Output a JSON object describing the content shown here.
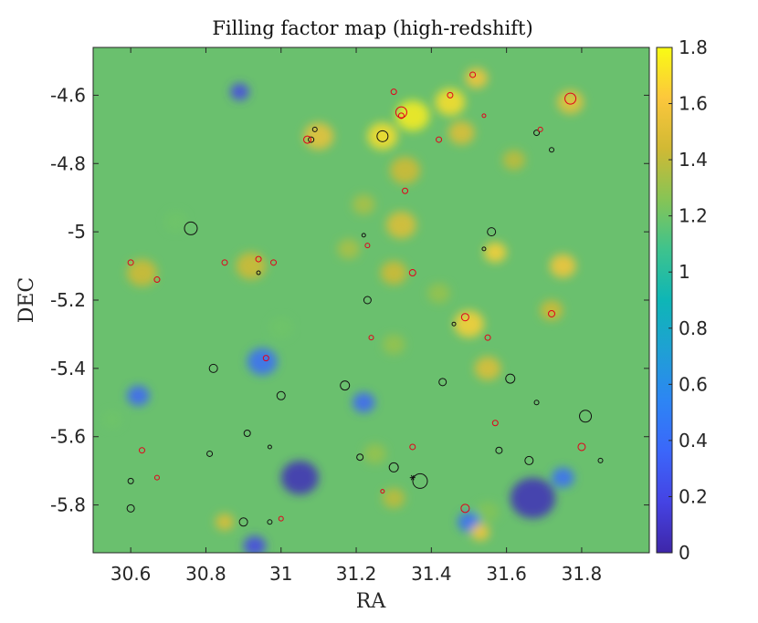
{
  "chart_data": {
    "type": "heatmap",
    "title": "Filling factor map (high-redshift)",
    "xlabel": "RA",
    "ylabel": "DEC",
    "xlim": [
      30.5,
      31.98
    ],
    "ylim": [
      -5.94,
      -4.46
    ],
    "x_reversed": false,
    "y_reversed": true,
    "colormap": "parula",
    "colorbar": {
      "range": [
        0,
        1.8
      ],
      "ticks": [
        "0",
        "0.2",
        "0.4",
        "0.6",
        "0.8",
        "1",
        "1.2",
        "1.4",
        "1.6",
        "1.8"
      ]
    },
    "x_ticks": [
      {
        "value": 30.6,
        "label": "30.6"
      },
      {
        "value": 30.8,
        "label": "30.8"
      },
      {
        "value": 31.0,
        "label": "31"
      },
      {
        "value": 31.2,
        "label": "31.2"
      },
      {
        "value": 31.4,
        "label": "31.4"
      },
      {
        "value": 31.6,
        "label": "31.6"
      },
      {
        "value": 31.8,
        "label": "31.8"
      }
    ],
    "y_ticks": [
      {
        "value": -4.6,
        "label": "-4.6"
      },
      {
        "value": -4.8,
        "label": "-4.8"
      },
      {
        "value": -5.0,
        "label": "-5"
      },
      {
        "value": -5.2,
        "label": "-5.2"
      },
      {
        "value": -5.4,
        "label": "-5.4"
      },
      {
        "value": -5.6,
        "label": "-5.6"
      },
      {
        "value": -5.8,
        "label": "-5.8"
      }
    ],
    "field_features": [
      {
        "ra": 31.05,
        "dec": -5.72,
        "value": 0.05,
        "size": 0.05
      },
      {
        "ra": 31.67,
        "dec": -5.78,
        "value": 0.05,
        "size": 0.06
      },
      {
        "ra": 30.89,
        "dec": -4.59,
        "value": 0.2,
        "size": 0.025
      },
      {
        "ra": 30.93,
        "dec": -5.92,
        "value": 0.2,
        "size": 0.03
      },
      {
        "ra": 30.62,
        "dec": -5.48,
        "value": 0.35,
        "size": 0.03
      },
      {
        "ra": 30.95,
        "dec": -5.38,
        "value": 0.4,
        "size": 0.04
      },
      {
        "ra": 31.22,
        "dec": -5.5,
        "value": 0.35,
        "size": 0.03
      },
      {
        "ra": 31.75,
        "dec": -5.72,
        "value": 0.4,
        "size": 0.03
      },
      {
        "ra": 31.5,
        "dec": -5.85,
        "value": 0.4,
        "size": 0.03
      },
      {
        "ra": 30.55,
        "dec": -5.55,
        "value": 1.2,
        "size": 0.025
      },
      {
        "ra": 30.63,
        "dec": -5.12,
        "value": 1.45,
        "size": 0.04
      },
      {
        "ra": 30.72,
        "dec": -4.97,
        "value": 1.2,
        "size": 0.03
      },
      {
        "ra": 30.92,
        "dec": -5.1,
        "value": 1.45,
        "size": 0.04
      },
      {
        "ra": 31.0,
        "dec": -5.28,
        "value": 1.2,
        "size": 0.03
      },
      {
        "ra": 31.1,
        "dec": -4.72,
        "value": 1.55,
        "size": 0.04
      },
      {
        "ra": 31.27,
        "dec": -4.72,
        "value": 1.7,
        "size": 0.04
      },
      {
        "ra": 31.35,
        "dec": -4.66,
        "value": 1.75,
        "size": 0.045
      },
      {
        "ra": 31.45,
        "dec": -4.62,
        "value": 1.7,
        "size": 0.04
      },
      {
        "ra": 31.48,
        "dec": -4.71,
        "value": 1.5,
        "size": 0.035
      },
      {
        "ra": 31.52,
        "dec": -4.55,
        "value": 1.6,
        "size": 0.03
      },
      {
        "ra": 31.33,
        "dec": -4.82,
        "value": 1.45,
        "size": 0.04
      },
      {
        "ra": 31.22,
        "dec": -4.92,
        "value": 1.35,
        "size": 0.03
      },
      {
        "ra": 31.32,
        "dec": -4.98,
        "value": 1.5,
        "size": 0.04
      },
      {
        "ra": 31.18,
        "dec": -5.05,
        "value": 1.35,
        "size": 0.03
      },
      {
        "ra": 31.3,
        "dec": -5.12,
        "value": 1.45,
        "size": 0.035
      },
      {
        "ra": 31.42,
        "dec": -5.18,
        "value": 1.3,
        "size": 0.03
      },
      {
        "ra": 31.5,
        "dec": -5.27,
        "value": 1.65,
        "size": 0.04
      },
      {
        "ra": 31.57,
        "dec": -5.06,
        "value": 1.65,
        "size": 0.03
      },
      {
        "ra": 31.75,
        "dec": -5.1,
        "value": 1.6,
        "size": 0.035
      },
      {
        "ra": 31.72,
        "dec": -5.23,
        "value": 1.45,
        "size": 0.03
      },
      {
        "ra": 31.77,
        "dec": -4.62,
        "value": 1.55,
        "size": 0.035
      },
      {
        "ra": 31.62,
        "dec": -4.79,
        "value": 1.4,
        "size": 0.03
      },
      {
        "ra": 31.55,
        "dec": -5.4,
        "value": 1.5,
        "size": 0.035
      },
      {
        "ra": 31.3,
        "dec": -5.33,
        "value": 1.3,
        "size": 0.03
      },
      {
        "ra": 30.85,
        "dec": -5.85,
        "value": 1.5,
        "size": 0.025
      },
      {
        "ra": 31.3,
        "dec": -5.78,
        "value": 1.4,
        "size": 0.03
      },
      {
        "ra": 31.55,
        "dec": -5.82,
        "value": 1.25,
        "size": 0.03
      },
      {
        "ra": 31.25,
        "dec": -5.65,
        "value": 1.3,
        "size": 0.03
      },
      {
        "ra": 31.53,
        "dec": -5.88,
        "value": 1.6,
        "size": 0.025
      }
    ],
    "sources": [
      {
        "ra": 30.76,
        "dec": -4.99,
        "r": 7,
        "color": "black"
      },
      {
        "ra": 31.08,
        "dec": -4.73,
        "r": 3,
        "color": "black"
      },
      {
        "ra": 31.09,
        "dec": -4.7,
        "r": 2.5,
        "color": "black"
      },
      {
        "ra": 31.27,
        "dec": -4.72,
        "r": 6,
        "color": "black"
      },
      {
        "ra": 31.22,
        "dec": -5.01,
        "r": 2,
        "color": "black"
      },
      {
        "ra": 31.23,
        "dec": -5.2,
        "r": 4,
        "color": "black"
      },
      {
        "ra": 31.56,
        "dec": -5.0,
        "r": 4.5,
        "color": "black"
      },
      {
        "ra": 31.54,
        "dec": -5.05,
        "r": 2,
        "color": "black"
      },
      {
        "ra": 31.68,
        "dec": -4.71,
        "r": 3,
        "color": "black"
      },
      {
        "ra": 31.72,
        "dec": -4.76,
        "r": 2.5,
        "color": "black"
      },
      {
        "ra": 30.94,
        "dec": -5.12,
        "r": 2,
        "color": "black"
      },
      {
        "ra": 31.46,
        "dec": -5.27,
        "r": 2,
        "color": "black"
      },
      {
        "ra": 30.82,
        "dec": -5.4,
        "r": 4.5,
        "color": "black"
      },
      {
        "ra": 31.0,
        "dec": -5.48,
        "r": 4.5,
        "color": "black"
      },
      {
        "ra": 31.17,
        "dec": -5.45,
        "r": 5,
        "color": "black"
      },
      {
        "ra": 31.43,
        "dec": -5.44,
        "r": 4,
        "color": "black"
      },
      {
        "ra": 31.61,
        "dec": -5.43,
        "r": 5,
        "color": "black"
      },
      {
        "ra": 31.68,
        "dec": -5.5,
        "r": 2.5,
        "color": "black"
      },
      {
        "ra": 31.81,
        "dec": -5.54,
        "r": 6.5,
        "color": "black"
      },
      {
        "ra": 30.91,
        "dec": -5.59,
        "r": 3.5,
        "color": "black"
      },
      {
        "ra": 30.97,
        "dec": -5.63,
        "r": 2,
        "color": "black"
      },
      {
        "ra": 30.81,
        "dec": -5.65,
        "r": 3,
        "color": "black"
      },
      {
        "ra": 31.21,
        "dec": -5.66,
        "r": 3.5,
        "color": "black"
      },
      {
        "ra": 31.3,
        "dec": -5.69,
        "r": 5,
        "color": "black"
      },
      {
        "ra": 31.37,
        "dec": -5.73,
        "r": 8,
        "color": "black"
      },
      {
        "ra": 31.58,
        "dec": -5.64,
        "r": 3.5,
        "color": "black"
      },
      {
        "ra": 31.66,
        "dec": -5.67,
        "r": 4.5,
        "color": "black"
      },
      {
        "ra": 31.85,
        "dec": -5.67,
        "r": 2.5,
        "color": "black"
      },
      {
        "ra": 30.6,
        "dec": -5.73,
        "r": 3,
        "color": "black"
      },
      {
        "ra": 30.6,
        "dec": -5.81,
        "r": 4,
        "color": "black"
      },
      {
        "ra": 30.9,
        "dec": -5.85,
        "r": 4.5,
        "color": "black"
      },
      {
        "ra": 30.97,
        "dec": -5.85,
        "r": 2.5,
        "color": "black"
      },
      {
        "ra": 31.3,
        "dec": -4.59,
        "r": 3,
        "color": "red"
      },
      {
        "ra": 31.32,
        "dec": -4.65,
        "r": 6,
        "color": "red"
      },
      {
        "ra": 31.32,
        "dec": -4.66,
        "r": 3,
        "color": "red"
      },
      {
        "ra": 31.45,
        "dec": -4.6,
        "r": 3,
        "color": "red"
      },
      {
        "ra": 31.51,
        "dec": -4.54,
        "r": 3,
        "color": "red"
      },
      {
        "ra": 31.54,
        "dec": -4.66,
        "r": 2,
        "color": "red"
      },
      {
        "ra": 31.42,
        "dec": -4.73,
        "r": 3,
        "color": "red"
      },
      {
        "ra": 31.07,
        "dec": -4.73,
        "r": 4,
        "color": "red"
      },
      {
        "ra": 31.77,
        "dec": -4.61,
        "r": 6,
        "color": "red"
      },
      {
        "ra": 31.69,
        "dec": -4.7,
        "r": 2.5,
        "color": "red"
      },
      {
        "ra": 31.33,
        "dec": -4.88,
        "r": 3,
        "color": "red"
      },
      {
        "ra": 30.6,
        "dec": -5.09,
        "r": 3,
        "color": "red"
      },
      {
        "ra": 30.67,
        "dec": -5.14,
        "r": 3,
        "color": "red"
      },
      {
        "ra": 30.85,
        "dec": -5.09,
        "r": 3,
        "color": "red"
      },
      {
        "ra": 30.94,
        "dec": -5.08,
        "r": 3,
        "color": "red"
      },
      {
        "ra": 30.98,
        "dec": -5.09,
        "r": 3,
        "color": "red"
      },
      {
        "ra": 31.23,
        "dec": -5.04,
        "r": 2.5,
        "color": "red"
      },
      {
        "ra": 31.35,
        "dec": -5.12,
        "r": 3.5,
        "color": "red"
      },
      {
        "ra": 31.49,
        "dec": -5.25,
        "r": 4,
        "color": "red"
      },
      {
        "ra": 31.24,
        "dec": -5.31,
        "r": 2.5,
        "color": "red"
      },
      {
        "ra": 31.55,
        "dec": -5.31,
        "r": 3,
        "color": "red"
      },
      {
        "ra": 31.72,
        "dec": -5.24,
        "r": 3.5,
        "color": "red"
      },
      {
        "ra": 30.96,
        "dec": -5.37,
        "r": 3,
        "color": "red"
      },
      {
        "ra": 31.57,
        "dec": -5.56,
        "r": 3,
        "color": "red"
      },
      {
        "ra": 30.63,
        "dec": -5.64,
        "r": 3,
        "color": "red"
      },
      {
        "ra": 30.67,
        "dec": -5.72,
        "r": 2.5,
        "color": "red"
      },
      {
        "ra": 31.35,
        "dec": -5.63,
        "r": 3,
        "color": "red"
      },
      {
        "ra": 31.8,
        "dec": -5.63,
        "r": 4,
        "color": "red"
      },
      {
        "ra": 31.27,
        "dec": -5.76,
        "r": 2,
        "color": "red"
      },
      {
        "ra": 31.49,
        "dec": -5.81,
        "r": 4.5,
        "color": "red"
      },
      {
        "ra": 31.0,
        "dec": -5.84,
        "r": 2.5,
        "color": "red"
      }
    ],
    "star_markers": [
      {
        "ra": 31.35,
        "dec": -5.72,
        "color": "black"
      }
    ]
  }
}
